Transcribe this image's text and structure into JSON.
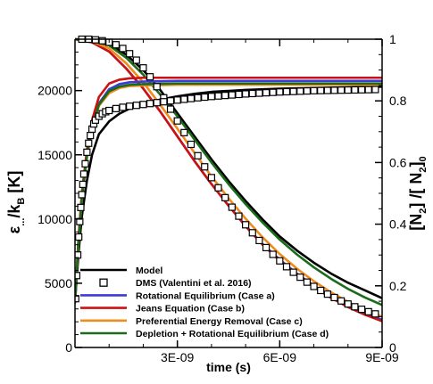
{
  "chart_data": {
    "type": "line",
    "x_unit_label": "time (s)",
    "y_left_label_parts": [
      "ε",
      "...",
      "/k",
      "B",
      " [K]"
    ],
    "y_right_label_parts": [
      "[N",
      "2",
      "] /[ N",
      "2",
      "]",
      "0"
    ],
    "xlim": [
      0,
      9e-09
    ],
    "ylim_left": [
      0,
      24000
    ],
    "ylim_right": [
      0,
      1
    ],
    "x_ticks": [
      {
        "value": 3e-09,
        "label": "3E-09"
      },
      {
        "value": 6e-09,
        "label": "6E-09"
      },
      {
        "value": 9e-09,
        "label": "9E-09"
      }
    ],
    "y_left_ticks": [
      {
        "value": 0,
        "label": "0"
      },
      {
        "value": 5000,
        "label": "5000"
      },
      {
        "value": 10000,
        "label": "10000"
      },
      {
        "value": 15000,
        "label": "15000"
      },
      {
        "value": 20000,
        "label": "20000"
      }
    ],
    "y_right_ticks": [
      {
        "value": 0,
        "label": "0"
      },
      {
        "value": 0.2,
        "label": "0.2"
      },
      {
        "value": 0.4,
        "label": "0.4"
      },
      {
        "value": 0.6,
        "label": "0.6"
      },
      {
        "value": 0.8,
        "label": "0.8"
      },
      {
        "value": 1,
        "label": "1"
      }
    ],
    "legend_position": "bottom-left",
    "legend": [
      {
        "label": "Model",
        "color": "#000000",
        "style": "line"
      },
      {
        "label": "DMS (Valentini et al. 2016)",
        "color": "#000000",
        "style": "square"
      },
      {
        "label": "Rotational Equilibrium (Case a)",
        "color": "#3b3bd6",
        "style": "line"
      },
      {
        "label": "Jeans Equation (Case b)",
        "color": "#cc1111",
        "style": "line"
      },
      {
        "label": "Preferential Energy Removal (Case c)",
        "color": "#f08c1e",
        "style": "line"
      },
      {
        "label": "Depletion + Rotational Equilibrium (Case d)",
        "color": "#1a6b1a",
        "style": "line"
      }
    ],
    "series": [
      {
        "name": "Model",
        "axis": "right",
        "color": "#000000",
        "x": [
          0,
          5e-10,
          1e-09,
          1.5e-09,
          2e-09,
          2.5e-09,
          3e-09,
          3.5e-09,
          4e-09,
          4.5e-09,
          5e-09,
          5.5e-09,
          6e-09,
          6.5e-09,
          7e-09,
          7.5e-09,
          8e-09,
          8.5e-09,
          9e-09
        ],
        "y": [
          1.0,
          0.998,
          0.985,
          0.95,
          0.9,
          0.835,
          0.76,
          0.685,
          0.61,
          0.54,
          0.475,
          0.415,
          0.36,
          0.315,
          0.275,
          0.24,
          0.21,
          0.185,
          0.16
        ]
      },
      {
        "name": "Rotational Equilibrium (Case a)",
        "axis": "right",
        "color": "#3b3bd6",
        "x": [
          0,
          5e-10,
          1e-09,
          1.5e-09,
          2e-09,
          2.5e-09,
          3e-09,
          3.5e-09,
          4e-09,
          4.5e-09,
          5e-09,
          5.5e-09,
          6e-09,
          6.5e-09,
          7e-09,
          7.5e-09,
          8e-09,
          8.5e-09,
          9e-09
        ],
        "y": [
          1.0,
          0.99,
          0.96,
          0.905,
          0.84,
          0.765,
          0.685,
          0.605,
          0.53,
          0.46,
          0.395,
          0.335,
          0.285,
          0.24,
          0.2,
          0.165,
          0.135,
          0.11,
          0.09
        ]
      },
      {
        "name": "Jeans Equation (Case b)",
        "axis": "right",
        "color": "#cc1111",
        "x": [
          0,
          5e-10,
          1e-09,
          1.5e-09,
          2e-09,
          2.5e-09,
          3e-09,
          3.5e-09,
          4e-09,
          4.5e-09,
          5e-09,
          5.5e-09,
          6e-09,
          6.5e-09,
          7e-09,
          7.5e-09,
          8e-09,
          8.5e-09,
          9e-09
        ],
        "y": [
          1.0,
          0.99,
          0.96,
          0.905,
          0.84,
          0.765,
          0.685,
          0.605,
          0.53,
          0.46,
          0.393,
          0.333,
          0.282,
          0.236,
          0.196,
          0.161,
          0.131,
          0.106,
          0.085
        ]
      },
      {
        "name": "Preferential Energy Removal (Case c)",
        "axis": "right",
        "color": "#f08c1e",
        "x": [
          0,
          5e-10,
          1e-09,
          1.5e-09,
          2e-09,
          2.5e-09,
          3e-09,
          3.5e-09,
          4e-09,
          4.5e-09,
          5e-09,
          5.5e-09,
          6e-09,
          6.5e-09,
          7e-09,
          7.5e-09,
          8e-09,
          8.5e-09,
          9e-09
        ],
        "y": [
          1.0,
          0.993,
          0.97,
          0.922,
          0.86,
          0.787,
          0.71,
          0.632,
          0.555,
          0.484,
          0.418,
          0.357,
          0.303,
          0.256,
          0.215,
          0.179,
          0.148,
          0.121,
          0.1
        ]
      },
      {
        "name": "Depletion + Rotational Equilibrium (Case d)",
        "axis": "right",
        "color": "#1a6b1a",
        "x": [
          0,
          5e-10,
          1e-09,
          1.5e-09,
          2e-09,
          2.5e-09,
          3e-09,
          3.5e-09,
          4e-09,
          4.5e-09,
          5e-09,
          5.5e-09,
          6e-09,
          6.5e-09,
          7e-09,
          7.5e-09,
          8e-09,
          8.5e-09,
          9e-09
        ],
        "y": [
          1.0,
          0.995,
          0.98,
          0.94,
          0.885,
          0.82,
          0.75,
          0.675,
          0.6,
          0.53,
          0.465,
          0.405,
          0.35,
          0.302,
          0.26,
          0.223,
          0.19,
          0.162,
          0.138
        ]
      },
      {
        "name": "DMS (Valentini et al. 2016)",
        "axis": "right",
        "color": "#000000",
        "marker": "square",
        "x": [
          2e-10,
          4e-10,
          6e-10,
          8e-10,
          1e-09,
          1.2e-09,
          1.4e-09,
          1.6e-09,
          1.8e-09,
          2e-09,
          2.2e-09,
          2.4e-09,
          2.6e-09,
          2.8e-09,
          3e-09,
          3.2e-09,
          3.4e-09,
          3.6e-09,
          3.8e-09,
          4e-09,
          4.2e-09,
          4.4e-09,
          4.6e-09,
          4.8e-09,
          5e-09,
          5.2e-09,
          5.4e-09,
          5.6e-09,
          5.8e-09,
          6e-09,
          6.2e-09,
          6.4e-09,
          6.6e-09,
          6.8e-09,
          7e-09,
          7.2e-09,
          7.4e-09,
          7.6e-09,
          7.8e-09,
          8e-09,
          8.2e-09,
          8.4e-09,
          8.6e-09,
          8.8e-09
        ],
        "y": [
          1.0,
          1.0,
          0.998,
          0.995,
          0.99,
          0.982,
          0.97,
          0.953,
          0.932,
          0.907,
          0.878,
          0.846,
          0.81,
          0.773,
          0.735,
          0.697,
          0.659,
          0.622,
          0.586,
          0.551,
          0.518,
          0.486,
          0.455,
          0.426,
          0.398,
          0.372,
          0.347,
          0.324,
          0.302,
          0.281,
          0.262,
          0.244,
          0.228,
          0.212,
          0.198,
          0.185,
          0.173,
          0.162,
          0.151,
          0.141,
          0.132,
          0.124,
          0.116,
          0.109
        ]
      },
      {
        "name": "Model",
        "axis": "left",
        "color": "#000000",
        "x": [
          0,
          1e-10,
          2e-10,
          3.5e-10,
          5e-10,
          7e-10,
          1e-09,
          1.3e-09,
          1.6e-09,
          2e-09,
          2.5e-09,
          3e-09,
          3.5e-09,
          4e-09,
          5e-09,
          6e-09,
          7e-09,
          8e-09,
          9e-09
        ],
        "y": [
          3500,
          7200,
          10200,
          13000,
          15000,
          16600,
          17600,
          18200,
          18600,
          19000,
          19300,
          19550,
          19750,
          19900,
          20050,
          20150,
          20200,
          20250,
          20300
        ]
      },
      {
        "name": "Rotational Equilibrium (Case a)",
        "axis": "left",
        "color": "#3b3bd6",
        "x": [
          0,
          1e-10,
          2e-10,
          3.5e-10,
          5e-10,
          7e-10,
          1e-09,
          1.3e-09,
          1.6e-09,
          2e-09,
          3e-09,
          4e-09,
          5e-09,
          6e-09,
          7e-09,
          8e-09,
          9e-09
        ],
        "y": [
          3500,
          8200,
          11700,
          15000,
          17200,
          19000,
          20100,
          20500,
          20650,
          20700,
          20750,
          20750,
          20750,
          20750,
          20750,
          20750,
          20750
        ]
      },
      {
        "name": "Jeans Equation (Case b)",
        "axis": "left",
        "color": "#cc1111",
        "x": [
          0,
          1e-10,
          2e-10,
          3.5e-10,
          5e-10,
          7e-10,
          1e-09,
          1.3e-09,
          1.6e-09,
          2e-09,
          3e-09,
          4e-09,
          5e-09,
          6e-09,
          7e-09,
          8e-09,
          9e-09
        ],
        "y": [
          3500,
          8400,
          12000,
          15400,
          17700,
          19500,
          20550,
          20850,
          20950,
          21000,
          21000,
          21000,
          21000,
          21000,
          21000,
          21000,
          21000
        ]
      },
      {
        "name": "Preferential Energy Removal (Case c)",
        "axis": "left",
        "color": "#f08c1e",
        "x": [
          0,
          1e-10,
          2e-10,
          3.5e-10,
          5e-10,
          7e-10,
          1e-09,
          1.3e-09,
          1.6e-09,
          2e-09,
          3e-09,
          4e-09,
          5e-09,
          6e-09,
          7e-09,
          8e-09,
          9e-09
        ],
        "y": [
          3500,
          8000,
          11500,
          14800,
          17000,
          18800,
          19800,
          20200,
          20350,
          20400,
          20450,
          20450,
          20450,
          20450,
          20450,
          20450,
          20450
        ]
      },
      {
        "name": "Depletion + Rotational Equilibrium (Case d)",
        "axis": "left",
        "color": "#1a6b1a",
        "x": [
          0,
          1e-10,
          2e-10,
          3.5e-10,
          5e-10,
          7e-10,
          1e-09,
          1.3e-09,
          1.6e-09,
          2e-09,
          3e-09,
          4e-09,
          5e-09,
          6e-09,
          7e-09,
          8e-09,
          9e-09
        ],
        "y": [
          3500,
          8100,
          11600,
          14900,
          17100,
          18900,
          19950,
          20300,
          20450,
          20500,
          20550,
          20550,
          20550,
          20550,
          20550,
          20550,
          20550
        ]
      },
      {
        "name": "DMS (Valentini et al. 2016)",
        "axis": "left",
        "color": "#000000",
        "marker": "square",
        "x": [
          2e-11,
          5e-11,
          8e-11,
          1.1e-10,
          1.4e-10,
          1.7e-10,
          2e-10,
          2.3e-10,
          2.6e-10,
          3e-10,
          3.5e-10,
          4e-10,
          4.5e-10,
          5e-10,
          5.5e-10,
          6e-10,
          7e-10,
          8e-10,
          9e-10,
          1e-09,
          1.2e-09,
          1.4e-09,
          1.6e-09,
          1.8e-09,
          2e-09,
          2.2e-09,
          2.4e-09,
          2.6e-09,
          2.8e-09,
          3e-09,
          3.2e-09,
          3.4e-09,
          3.6e-09,
          3.8e-09,
          4e-09,
          4.2e-09,
          4.4e-09,
          4.6e-09,
          4.8e-09,
          5e-09,
          5.2e-09,
          5.4e-09,
          5.6e-09,
          5.8e-09,
          6e-09,
          6.2e-09,
          6.4e-09,
          6.6e-09,
          6.8e-09,
          7e-09,
          7.2e-09,
          7.4e-09,
          7.6e-09,
          7.8e-09,
          8e-09,
          8.2e-09,
          8.4e-09,
          8.6e-09,
          8.8e-09
        ],
        "y": [
          3800,
          5600,
          7200,
          8600,
          9800,
          10900,
          11900,
          12700,
          13500,
          14300,
          15200,
          15900,
          16500,
          17000,
          17400,
          17700,
          18000,
          18200,
          18350,
          18450,
          18600,
          18700,
          18780,
          18850,
          18920,
          18990,
          19060,
          19130,
          19200,
          19260,
          19320,
          19380,
          19440,
          19490,
          19540,
          19580,
          19620,
          19660,
          19700,
          19740,
          19770,
          19800,
          19830,
          19860,
          19890,
          19910,
          19930,
          19950,
          19970,
          19990,
          20000,
          20010,
          20020,
          20030,
          20040,
          20050,
          20060,
          20070,
          20080
        ]
      }
    ]
  }
}
